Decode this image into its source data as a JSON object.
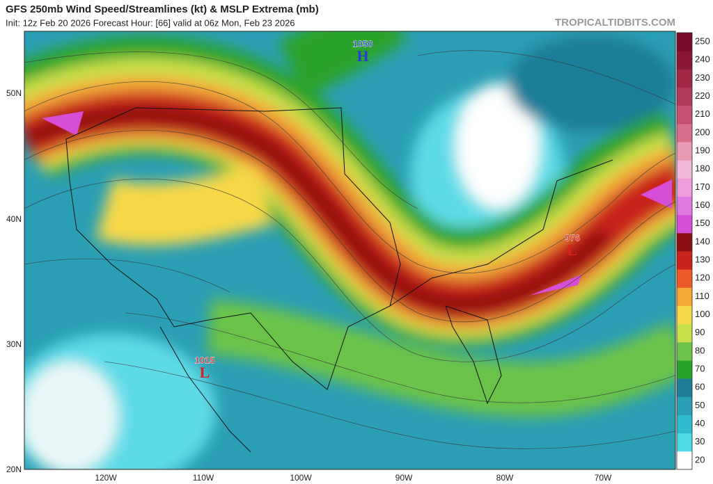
{
  "header": {
    "title": "GFS 250mb Wind Speed/Streamlines (kt) & MSLP Extrema (mb)",
    "subtitle": "Init: 12z Feb 20 2026   Forecast Hour: [66]   valid at 06z Mon, Feb 23 2026",
    "watermark": "TROPICALTIDBITS.COM"
  },
  "pressure_centers": [
    {
      "value": 1050,
      "label": "H",
      "color": "#2a3fcf"
    },
    {
      "value": 976,
      "label": "L",
      "color": "#d42020"
    },
    {
      "value": 1015,
      "label": "L",
      "color": "#d42020"
    }
  ],
  "lat_labels": [
    "50N",
    "40N",
    "30N",
    "20N"
  ],
  "lon_labels": [
    "120W",
    "110W",
    "100W",
    "90W",
    "80W",
    "70W"
  ],
  "colorbar": {
    "levels": [
      20,
      30,
      40,
      50,
      60,
      70,
      80,
      90,
      100,
      110,
      120,
      130,
      140,
      150,
      160,
      170,
      180,
      190,
      200,
      210,
      220,
      230,
      240,
      250
    ],
    "colors": [
      "#ffffff",
      "#4fd9e5",
      "#2fbccc",
      "#2a9fb3",
      "#1f7f98",
      "#2aa32a",
      "#6cc24a",
      "#c8e04b",
      "#f6d84a",
      "#f5a83a",
      "#ec5a2a",
      "#c8231e",
      "#8a0f10",
      "#d64dd6",
      "#e07ae0",
      "#ee9cdd",
      "#f2b7d9",
      "#e89bb5",
      "#d86f8d",
      "#c65071",
      "#b33a5b",
      "#a12745",
      "#8a1535",
      "#7a0a2a"
    ]
  }
}
